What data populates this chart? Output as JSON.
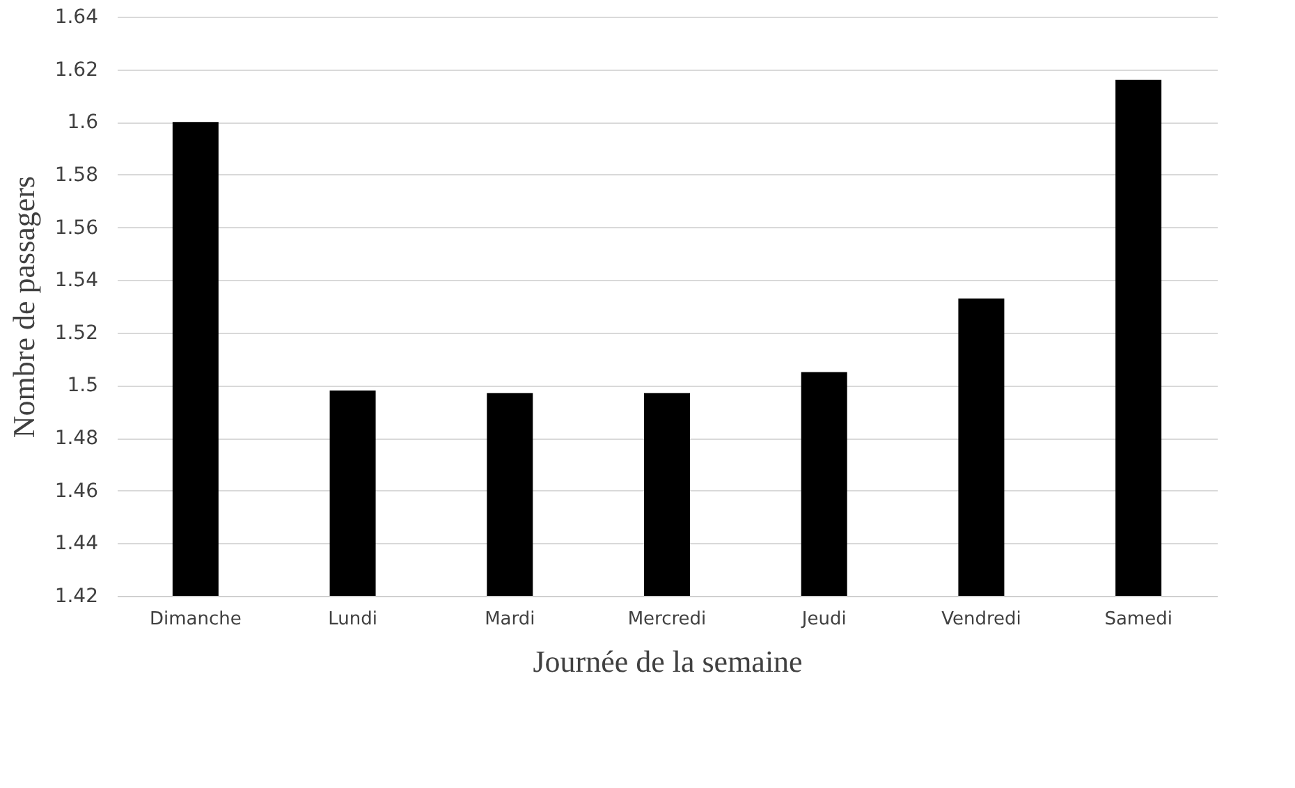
{
  "chart_data": {
    "type": "bar",
    "xlabel": "Journée  de la semaine",
    "ylabel": "Nombre de passagers",
    "categories": [
      "Dimanche",
      "Lundi",
      "Mardi",
      "Mercredi",
      "Jeudi",
      "Vendredi",
      "Samedi"
    ],
    "values": [
      1.6,
      1.498,
      1.497,
      1.497,
      1.505,
      1.533,
      1.616
    ],
    "color": "#000000",
    "ylim": [
      1.42,
      1.64
    ],
    "yticks": [
      1.42,
      1.44,
      1.46,
      1.48,
      1.5,
      1.52,
      1.54,
      1.56,
      1.58,
      1.6,
      1.62,
      1.64
    ],
    "grid": "y"
  }
}
